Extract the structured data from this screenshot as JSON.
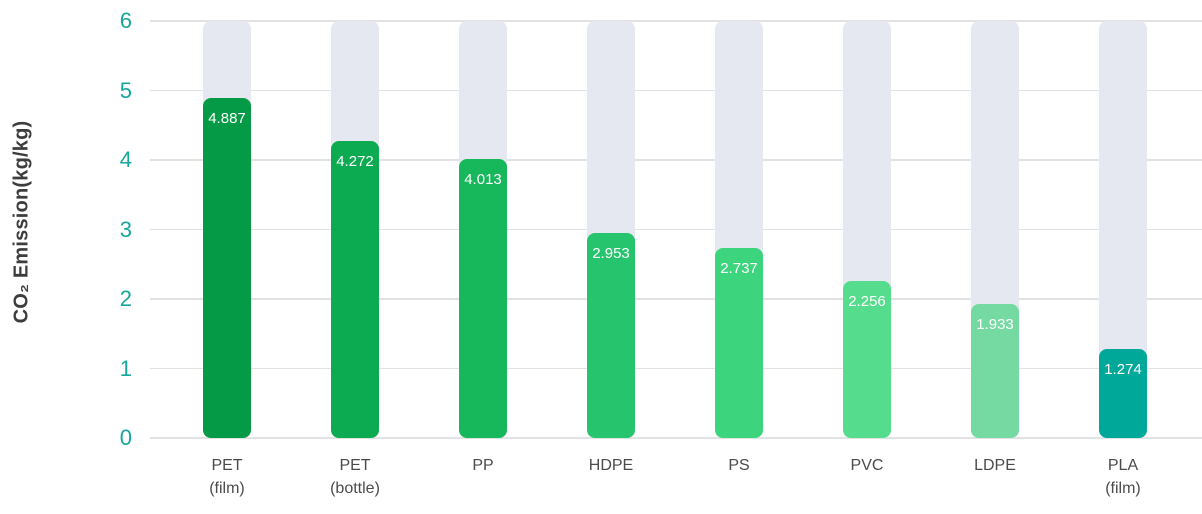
{
  "chart_data": {
    "type": "bar",
    "title": "",
    "xlabel": "",
    "ylabel": "CO₂ Emission(kg/kg)",
    "ylim": [
      0,
      6
    ],
    "yticks": [
      0,
      1,
      2,
      3,
      4,
      5,
      6
    ],
    "grid": true,
    "legend": false,
    "categories": [
      [
        "PET",
        "(film)"
      ],
      [
        "PET",
        "(bottle)"
      ],
      [
        "PP"
      ],
      [
        "HDPE"
      ],
      [
        "PS"
      ],
      [
        "PVC"
      ],
      [
        "LDPE"
      ],
      [
        "PLA",
        "(film)"
      ]
    ],
    "values": [
      4.887,
      4.272,
      4.013,
      2.953,
      2.737,
      2.256,
      1.933,
      1.274
    ],
    "value_labels": [
      "4.887",
      "4.272",
      "4.013",
      "2.953",
      "2.737",
      "2.256",
      "1.933",
      "1.274"
    ],
    "bar_colors": [
      "#059b46",
      "#0cab52",
      "#17b75c",
      "#27c46e",
      "#3dd47e",
      "#55dd8d",
      "#75d9a2",
      "#00a89a"
    ],
    "track_color": "#e5e8f0",
    "grid_color": "#e2e2e5",
    "tick_color": "#16a69a",
    "value_label_color": "#ffffff",
    "category_label_color": "#4b4b4b",
    "axis_title_color": "#3d3d3d",
    "background": "#ffffff"
  }
}
